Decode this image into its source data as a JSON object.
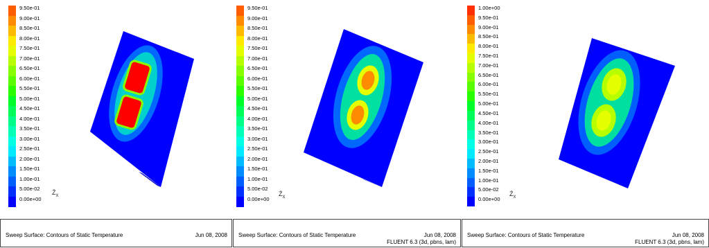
{
  "panels": [
    {
      "colorbar": {
        "labels": [
          "9.50e-01",
          "9.00e-01",
          "8.50e-01",
          "8.00e-01",
          "7.50e-01",
          "7.00e-01",
          "6.50e-01",
          "6.00e-01",
          "5.50e-01",
          "5.00e-01",
          "4.50e-01",
          "4.00e-01",
          "3.50e-01",
          "3.00e-01",
          "2.50e-01",
          "2.00e-01",
          "1.50e-01",
          "1.00e-01",
          "5.00e-02",
          "0.00e+00"
        ]
      },
      "caption": {
        "title": "Sweep Surface: Contours of Static Temperature",
        "date": "Jun 08, 2008",
        "solver": ""
      }
    },
    {
      "colorbar": {
        "labels": [
          "9.50e-01",
          "9.00e-01",
          "8.50e-01",
          "8.00e-01",
          "7.50e-01",
          "7.00e-01",
          "6.50e-01",
          "6.00e-01",
          "5.50e-01",
          "5.00e-01",
          "4.50e-01",
          "4.00e-01",
          "3.50e-01",
          "3.00e-01",
          "2.50e-01",
          "2.00e-01",
          "1.50e-01",
          "1.00e-01",
          "5.00e-02",
          "0.00e+00"
        ]
      },
      "caption": {
        "title": "Sweep Surface: Contours of Static Temperature",
        "date": "Jun 08, 2008",
        "solver": "FLUENT 6.3 (3d, pbns, lam)"
      }
    },
    {
      "colorbar": {
        "labels": [
          "1.00e+00",
          "9.50e-01",
          "9.00e-01",
          "8.50e-01",
          "8.00e-01",
          "7.50e-01",
          "7.00e-01",
          "6.50e-01",
          "6.00e-01",
          "5.50e-01",
          "5.00e-01",
          "4.50e-01",
          "4.00e-01",
          "3.50e-01",
          "3.00e-01",
          "2.50e-01",
          "2.00e-01",
          "1.50e-01",
          "1.00e-01",
          "5.00e-02",
          "0.00e+00"
        ]
      },
      "caption": {
        "title": "Sweep Surface: Contours of Static Temperature",
        "date": "Jun 08, 2008",
        "solver": "FLUENT 6.3 (3d, pbns, lam)"
      }
    }
  ],
  "colors": {
    "scale": [
      "#ff0000",
      "#ff2f00",
      "#ff5e00",
      "#ff8c00",
      "#ffbb00",
      "#ffea00",
      "#e5ff00",
      "#b7ff00",
      "#88ff00",
      "#59ff00",
      "#2aff00",
      "#00ff2a",
      "#00ff59",
      "#00ff88",
      "#00ffb7",
      "#00ffe5",
      "#00eaff",
      "#00bbff",
      "#008cff",
      "#005eff",
      "#002fff",
      "#0000ff"
    ],
    "background": "#0000ff"
  }
}
